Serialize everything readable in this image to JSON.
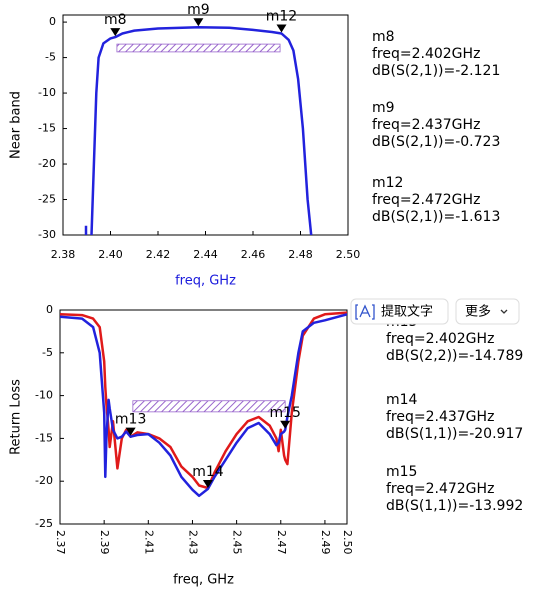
{
  "chart_data": [
    {
      "type": "line",
      "y_label": "Near band",
      "x_label": "freq, GHz",
      "x_label_color": "#1a1adc",
      "xlim": [
        2.38,
        2.5
      ],
      "xticks": [
        2.38,
        {
          "value": 2.4,
          "label": "2.40"
        },
        2.42,
        2.44,
        2.46,
        2.48,
        {
          "value": 2.5,
          "label": "2.50"
        }
      ],
      "ylim": [
        -30,
        1
      ],
      "yticks": [
        0,
        -5,
        -10,
        -15,
        -20,
        -25,
        -30
      ],
      "x": [
        2.3897,
        2.3897,
        2.391,
        2.392,
        2.393,
        2.394,
        2.395,
        2.397,
        2.4,
        2.402,
        2.405,
        2.41,
        2.42,
        2.437,
        2.45,
        2.46,
        2.468,
        2.472,
        2.475,
        2.477,
        2.479,
        2.481,
        2.483,
        2.4845
      ],
      "series": [
        {
          "name": "dB(S(2,1))",
          "color": "#2222dd",
          "values": [
            -30,
            -28.7,
            null,
            -30,
            -20,
            -10,
            -5,
            -3,
            -2.3,
            -2.121,
            -1.6,
            -1.2,
            -0.9,
            -0.723,
            -0.8,
            -1.1,
            -1.4,
            -1.613,
            -2.5,
            -4,
            -8,
            -15,
            -25,
            -30
          ]
        }
      ],
      "spec_box": {
        "xlim": [
          2.4027,
          2.4714
        ],
        "ylim": [
          -4.2,
          -3.1
        ],
        "color": "#9966cc"
      },
      "markers": [
        {
          "name": "m8",
          "x": 2.402,
          "y": -2.121,
          "readout": [
            "freq=2.402GHz",
            "dB(S(2,1))=-2.121"
          ]
        },
        {
          "name": "m9",
          "x": 2.437,
          "y": -0.723,
          "readout": [
            "freq=2.437GHz",
            "dB(S(2,1))=-0.723"
          ]
        },
        {
          "name": "m12",
          "x": 2.472,
          "y": -1.613,
          "readout": [
            "freq=2.472GHz",
            "dB(S(2,1))=-1.613"
          ]
        }
      ]
    },
    {
      "type": "line",
      "y_label": "Return Loss",
      "x_label": "freq, GHz",
      "x_label_color": "#000000",
      "xlim": [
        2.37,
        2.5
      ],
      "xticks": [
        2.37,
        2.39,
        2.41,
        2.43,
        2.45,
        2.47,
        2.49,
        {
          "value": 2.5,
          "label": "2.50"
        }
      ],
      "ylim": [
        -25,
        0
      ],
      "yticks": [
        0,
        -5,
        -10,
        -15,
        -20,
        -25
      ],
      "x": [
        2.37,
        2.38,
        2.385,
        2.388,
        2.39,
        2.3905,
        2.391,
        2.392,
        2.3925,
        2.394,
        2.396,
        2.398,
        2.4,
        2.402,
        2.405,
        2.41,
        2.415,
        2.42,
        2.425,
        2.43,
        2.433,
        2.437,
        2.44,
        2.445,
        2.45,
        2.455,
        2.46,
        2.465,
        2.468,
        2.469,
        2.47,
        2.4715,
        2.472,
        2.473,
        2.475,
        2.478,
        2.48,
        2.485,
        2.49,
        2.5
      ],
      "series": [
        {
          "name": "dB(S(2,2))",
          "color": "#e01a1a",
          "values": [
            -0.5,
            -0.6,
            -1,
            -2,
            -6,
            -9,
            -11,
            -14,
            -16,
            -13,
            -18.5,
            -15,
            -14,
            -14.8,
            -14.3,
            -14.5,
            -15,
            -16,
            -18.3,
            -19.5,
            -20.5,
            -20.8,
            -19,
            -16.5,
            -14.5,
            -13,
            -12.5,
            -13.5,
            -15,
            -16.5,
            -14,
            -17,
            -17.5,
            -18,
            -12,
            -6,
            -3,
            -1,
            -0.5,
            -0.3
          ]
        },
        {
          "name": "dB(S(1,1))",
          "color": "#2222dd",
          "values": [
            -0.8,
            -1,
            -2,
            -5,
            -12,
            -19.5,
            -15,
            -10.5,
            -11.5,
            -14,
            -15,
            -14.8,
            -14.2,
            -14.8,
            -14.6,
            -14.5,
            -15.5,
            -17,
            -19.5,
            -21,
            -21.7,
            -20.9,
            -19.5,
            -17.5,
            -15.5,
            -13.8,
            -13.2,
            -14.5,
            -15.8,
            -15.5,
            -14.5,
            -14.2,
            -14,
            -12.5,
            -10,
            -5,
            -2.5,
            -1.5,
            -1.2,
            -0.5
          ]
        }
      ],
      "spec_box": {
        "xlim": [
          2.403,
          2.472
        ],
        "ylim": [
          -11.9,
          -10.6
        ],
        "color": "#9966cc"
      },
      "markers": [
        {
          "name": "m13",
          "x": 2.402,
          "y": -14.789,
          "readout": [
            "freq=2.402GHz",
            "dB(S(2,2))=-14.789"
          ]
        },
        {
          "name": "m14",
          "x": 2.437,
          "y": -20.917,
          "readout": [
            "freq=2.437GHz",
            "dB(S(1,1))=-20.917"
          ]
        },
        {
          "name": "m15",
          "x": 2.472,
          "y": -13.992,
          "readout": [
            "freq=2.472GHz",
            "dB(S(1,1))=-13.992"
          ]
        }
      ]
    }
  ],
  "overlay": {
    "buttons": [
      "提取文字",
      "更多"
    ]
  }
}
